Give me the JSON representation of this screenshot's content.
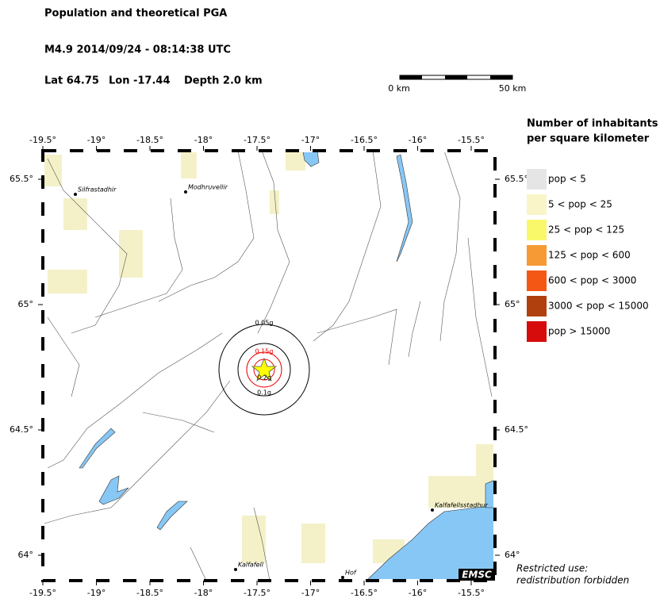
{
  "header": {
    "title": "Population and theoretical PGA",
    "event": "M4.9  2014/09/24 - 08:14:38 UTC",
    "lat": "Lat 64.75",
    "lon": "Lon -17.44",
    "depth": "Depth  2.0 km"
  },
  "scale_bar": {
    "start": "0 km",
    "end": "50 km"
  },
  "map": {
    "lon_ticks": [
      {
        "value": -19.5,
        "label": "-19.5°"
      },
      {
        "value": -19,
        "label": "-19°"
      },
      {
        "value": -18.5,
        "label": "-18.5°"
      },
      {
        "value": -18,
        "label": "-18°"
      },
      {
        "value": -17.5,
        "label": "-17.5°"
      },
      {
        "value": -17,
        "label": "-17°"
      },
      {
        "value": -16.5,
        "label": "-16.5°"
      },
      {
        "value": -16,
        "label": "-16°"
      },
      {
        "value": -15.5,
        "label": "-15.5°"
      }
    ],
    "lat_ticks": [
      {
        "value": 65.5,
        "label": "65.5°"
      },
      {
        "value": 65,
        "label": "65°"
      },
      {
        "value": 64.5,
        "label": "64.5°"
      },
      {
        "value": 64,
        "label": "64°"
      }
    ],
    "places": [
      "Silfrastadhir",
      "Modhruvellir",
      "Kalfafell",
      "Hof",
      "Kalfafellsstadhur"
    ],
    "pga_labels": [
      "0.05g",
      "0.15g",
      "0.2g",
      "0.1g"
    ],
    "logo": "EMSC"
  },
  "legend": {
    "title": [
      "Number of inhabitants",
      "per square kilometer"
    ],
    "items": [
      {
        "label": "pop < 5",
        "color": "#e5e5e5"
      },
      {
        "label": "5 < pop < 25",
        "color": "#faf5c8"
      },
      {
        "label": "25 < pop < 125",
        "color": "#f9f76a"
      },
      {
        "label": "125 < pop < 600",
        "color": "#f59a35"
      },
      {
        "label": "600 < pop < 3000",
        "color": "#f45714"
      },
      {
        "label": "3000 < pop < 15000",
        "color": "#b1400f"
      },
      {
        "label": "pop > 15000",
        "color": "#d60b0b"
      }
    ]
  },
  "note": [
    "Restricted use:",
    "redistribution forbidden"
  ]
}
